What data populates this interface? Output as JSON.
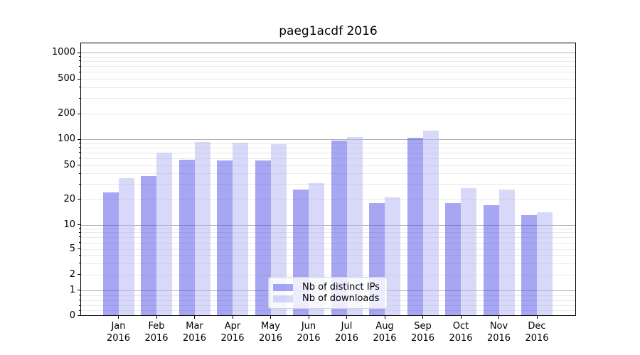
{
  "title": "paeg1acdf 2016",
  "legend": {
    "items": [
      {
        "label": "Nb of distinct IPs",
        "color": "rgba(84,84,232,0.52)"
      },
      {
        "label": "Nb of downloads",
        "color": "rgba(180,180,242,0.52)"
      }
    ]
  },
  "x_axis": {
    "year": "2016",
    "months": [
      "Jan",
      "Feb",
      "Mar",
      "Apr",
      "May",
      "Jun",
      "Jul",
      "Aug",
      "Sep",
      "Oct",
      "Nov",
      "Dec"
    ]
  },
  "y_axis": {
    "tick_labels": [
      "0",
      "1",
      "2",
      "5",
      "10",
      "20",
      "50",
      "100",
      "200",
      "500",
      "1000"
    ]
  },
  "chart_data": {
    "type": "bar",
    "title": "paeg1acdf 2016",
    "categories": [
      "Jan 2016",
      "Feb 2016",
      "Mar 2016",
      "Apr 2016",
      "May 2016",
      "Jun 2016",
      "Jul 2016",
      "Aug 2016",
      "Sep 2016",
      "Oct 2016",
      "Nov 2016",
      "Dec 2016"
    ],
    "series": [
      {
        "name": "Nb of distinct IPs",
        "key": "distinct-ips",
        "values": [
          24,
          37,
          58,
          57,
          57,
          26,
          96,
          18,
          103,
          18,
          17,
          13
        ],
        "color": "rgba(84,84,232,0.52)"
      },
      {
        "name": "Nb of downloads",
        "key": "downloads",
        "values": [
          35,
          70,
          93,
          91,
          88,
          31,
          106,
          21,
          125,
          27,
          26,
          14
        ],
        "color": "rgba(180,180,242,0.52)"
      }
    ],
    "yscale": "symlog",
    "yticks": [
      0,
      1,
      2,
      5,
      10,
      20,
      50,
      100,
      200,
      500,
      1000
    ],
    "ylim": [
      0,
      1270
    ],
    "grid": true,
    "legend_position": "lower center"
  },
  "colors": {
    "grid_major": "#b2b2b2",
    "grid_minor": "#e9e9e9",
    "axis": "#000000",
    "background": "#ffffff"
  }
}
